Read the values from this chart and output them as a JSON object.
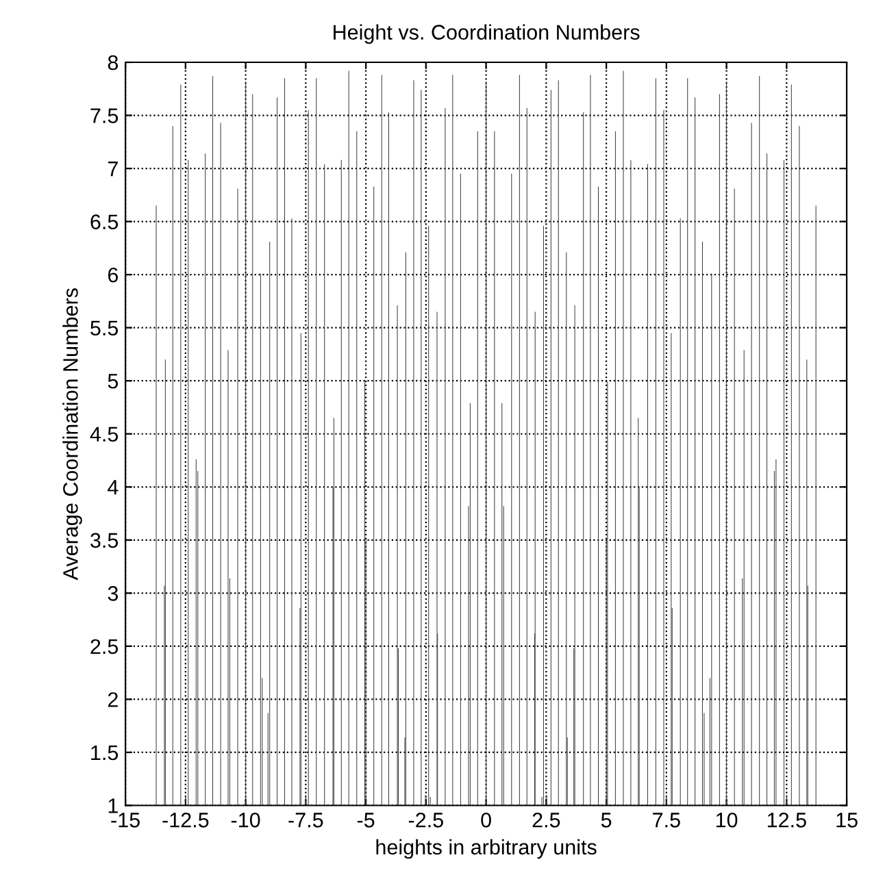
{
  "chart_data": {
    "type": "bar",
    "title": "Height vs. Coordination Numbers",
    "xlabel": "heights in arbitrary units",
    "ylabel": "Average Coordination Numbers",
    "x": [
      -13.72,
      -13.38,
      -13.34,
      -13.03,
      -12.7,
      -12.5,
      -12.39,
      -12.06,
      -11.99,
      -11.68,
      -11.37,
      -11.04,
      -10.73,
      -10.66,
      -10.33,
      -10.0,
      -9.71,
      -9.38,
      -9.31,
      -9.07,
      -9.0,
      -8.69,
      -8.38,
      -8.08,
      -7.74,
      -7.7,
      -7.5,
      -7.39,
      -7.06,
      -6.72,
      -6.37,
      -6.33,
      -6.02,
      -5.71,
      -5.38,
      -5.05,
      -5.0,
      -4.67,
      -4.34,
      -4.05,
      -3.69,
      -3.65,
      -3.38,
      -3.34,
      -3.01,
      -2.7,
      -2.52,
      -2.39,
      -2.32,
      -2.04,
      -2.02,
      -1.7,
      -1.39,
      -1.06,
      -0.73,
      -0.66,
      -0.35,
      0,
      0.35,
      0.66,
      0.73,
      1.06,
      1.39,
      1.7,
      2.02,
      2.04,
      2.32,
      2.39,
      2.52,
      2.7,
      3.01,
      3.34,
      3.38,
      3.65,
      3.69,
      4.05,
      4.34,
      4.67,
      5.0,
      5.05,
      5.38,
      5.71,
      6.02,
      6.33,
      6.37,
      6.72,
      7.06,
      7.39,
      7.5,
      7.7,
      7.74,
      8.08,
      8.38,
      8.69,
      9.0,
      9.07,
      9.31,
      9.38,
      9.71,
      10.0,
      10.33,
      10.66,
      10.73,
      11.04,
      11.37,
      11.68,
      11.99,
      12.06,
      12.39,
      12.5,
      12.7,
      13.03,
      13.34,
      13.38,
      13.72
    ],
    "values": [
      6.65,
      3.07,
      5.2,
      7.4,
      7.79,
      1.1,
      7.08,
      4.26,
      4.15,
      7.14,
      7.87,
      7.43,
      5.29,
      3.14,
      6.81,
      7.82,
      7.7,
      6.01,
      2.2,
      1.87,
      6.31,
      7.67,
      7.85,
      6.53,
      2.86,
      5.45,
      1.1,
      7.55,
      7.85,
      7.04,
      4.0,
      4.65,
      7.08,
      7.92,
      7.35,
      4.99,
      3.51,
      6.83,
      7.88,
      7.53,
      5.71,
      2.48,
      1.64,
      6.21,
      7.83,
      7.74,
      1.1,
      6.46,
      1.08,
      5.65,
      2.62,
      7.57,
      7.88,
      6.95,
      3.82,
      4.79,
      7.35,
      7.82,
      7.35,
      4.79,
      3.82,
      6.95,
      7.88,
      7.57,
      2.62,
      5.65,
      1.08,
      6.46,
      1.1,
      7.74,
      7.83,
      6.21,
      1.64,
      2.48,
      5.71,
      7.53,
      7.88,
      6.83,
      3.51,
      4.99,
      7.35,
      7.92,
      7.08,
      4.65,
      4.0,
      7.04,
      7.85,
      7.55,
      1.1,
      5.45,
      2.86,
      6.53,
      7.85,
      7.67,
      6.31,
      1.87,
      2.2,
      6.01,
      7.7,
      7.82,
      6.81,
      3.14,
      5.29,
      7.43,
      7.87,
      7.14,
      4.15,
      4.26,
      7.08,
      1.1,
      7.79,
      7.4,
      5.2,
      3.07,
      6.65
    ],
    "color": "#404040",
    "xlim": [
      -15,
      15
    ],
    "xticks": [
      -15,
      -12.5,
      -10,
      -7.5,
      -5,
      -2.5,
      0,
      2.5,
      5,
      7.5,
      10,
      12.5,
      15
    ],
    "ylim": [
      1,
      8
    ],
    "yticks": [
      1,
      1.5,
      2,
      2.5,
      3,
      3.5,
      4,
      4.5,
      5,
      5.5,
      6,
      6.5,
      7,
      7.5,
      8
    ],
    "grid": true
  }
}
